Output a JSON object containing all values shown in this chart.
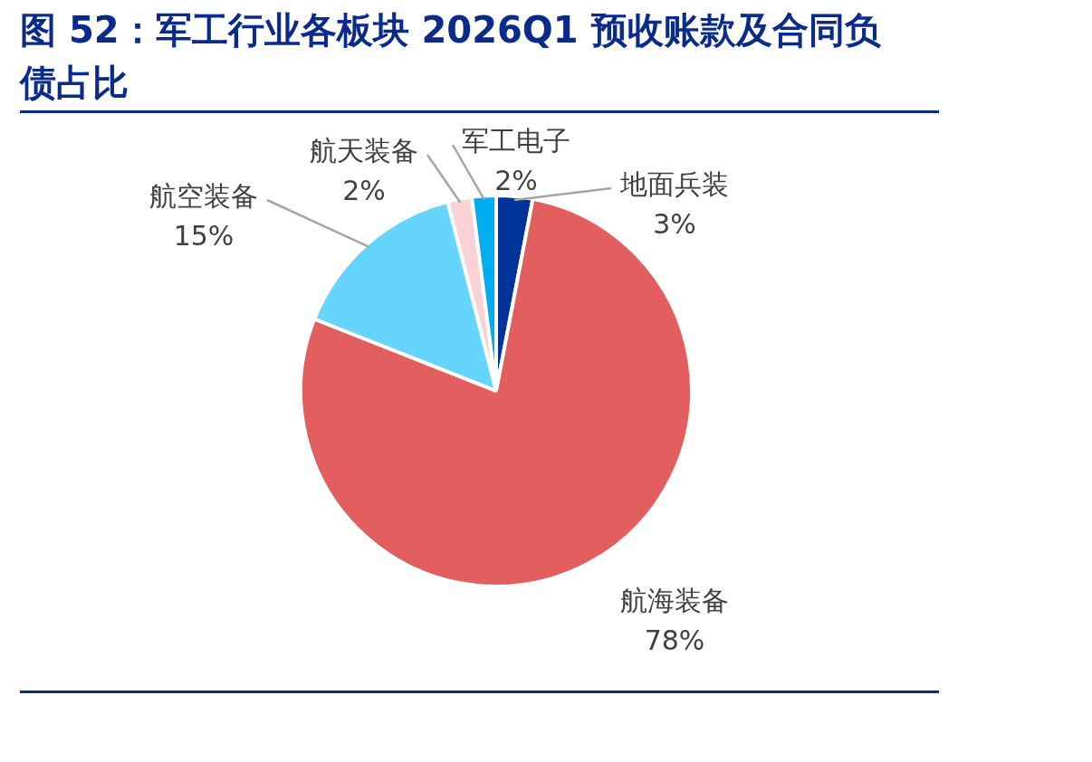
{
  "chart_data": {
    "type": "pie",
    "title": "图 52：军工行业各板块 2026Q1 预收账款及合同负债占比",
    "categories": [
      "地面兵装",
      "航海装备",
      "航空装备",
      "航天装备",
      "军工电子"
    ],
    "values": [
      3,
      78,
      15,
      2,
      2
    ],
    "colors": [
      "#003399",
      "#e35f5f",
      "#66d5fd",
      "#f8d2d5",
      "#00aeef"
    ],
    "value_labels": [
      "3%",
      "78%",
      "15%",
      "2%",
      "2%"
    ],
    "legend": false
  }
}
